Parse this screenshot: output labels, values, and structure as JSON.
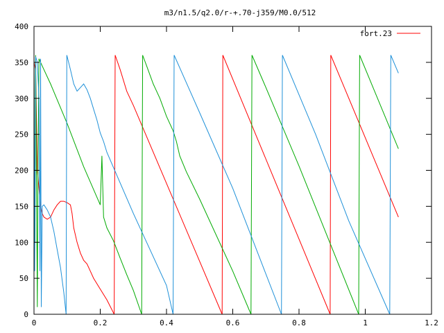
{
  "chart_data": {
    "type": "line",
    "title": "m3/n1.5/q2.0/r-+.70-j359/M0.0/512",
    "xlabel": "",
    "ylabel": "",
    "xlim": [
      0,
      1.2
    ],
    "ylim": [
      0,
      400
    ],
    "x_ticks": [
      0,
      0.2,
      0.4,
      0.6,
      0.8,
      1,
      1.2
    ],
    "x_tick_labels": [
      "0",
      "0.2",
      "0.4",
      "0.6",
      "0.8",
      "1",
      "1.2"
    ],
    "y_ticks": [
      0,
      50,
      100,
      150,
      200,
      250,
      300,
      350,
      400
    ],
    "y_tick_labels": [
      "0",
      "50",
      "100",
      "150",
      "200",
      "250",
      "300",
      "350",
      "400"
    ],
    "grid": false,
    "legend": {
      "position": "top-right",
      "entries": [
        "fort.23"
      ]
    },
    "series": [
      {
        "name": "fort.23",
        "color": "#ff0000",
        "points": [
          [
            0.0,
            350
          ],
          [
            0.005,
            340
          ],
          [
            0.01,
            200
          ],
          [
            0.02,
            150
          ],
          [
            0.025,
            140
          ],
          [
            0.03,
            135
          ],
          [
            0.04,
            132
          ],
          [
            0.05,
            135
          ],
          [
            0.06,
            145
          ],
          [
            0.07,
            152
          ],
          [
            0.08,
            157
          ],
          [
            0.09,
            157
          ],
          [
            0.1,
            155
          ],
          [
            0.11,
            152
          ],
          [
            0.115,
            140
          ],
          [
            0.12,
            120
          ],
          [
            0.13,
            100
          ],
          [
            0.14,
            85
          ],
          [
            0.15,
            75
          ],
          [
            0.16,
            70
          ],
          [
            0.17,
            60
          ],
          [
            0.18,
            50
          ],
          [
            0.2,
            35
          ],
          [
            0.22,
            20
          ],
          [
            0.242,
            0
          ],
          [
            0.245,
            360
          ],
          [
            0.26,
            340
          ],
          [
            0.28,
            310
          ],
          [
            0.29,
            300
          ],
          [
            0.3,
            290
          ],
          [
            0.568,
            0
          ],
          [
            0.57,
            360
          ],
          [
            0.894,
            0
          ],
          [
            0.896,
            360
          ],
          [
            1.1,
            135
          ]
        ]
      },
      {
        "name": "",
        "color": "#00aa00",
        "points": [
          [
            0.0,
            360
          ],
          [
            0.003,
            100
          ],
          [
            0.005,
            360
          ],
          [
            0.01,
            10
          ],
          [
            0.012,
            200
          ],
          [
            0.015,
            355
          ],
          [
            0.02,
            350
          ],
          [
            0.03,
            340
          ],
          [
            0.05,
            320
          ],
          [
            0.1,
            265
          ],
          [
            0.15,
            205
          ],
          [
            0.2,
            152
          ],
          [
            0.205,
            220
          ],
          [
            0.21,
            135
          ],
          [
            0.22,
            120
          ],
          [
            0.24,
            102
          ],
          [
            0.26,
            78
          ],
          [
            0.28,
            55
          ],
          [
            0.3,
            33
          ],
          [
            0.325,
            0
          ],
          [
            0.328,
            360
          ],
          [
            0.34,
            345
          ],
          [
            0.36,
            320
          ],
          [
            0.38,
            300
          ],
          [
            0.4,
            275
          ],
          [
            0.42,
            255
          ],
          [
            0.43,
            240
          ],
          [
            0.44,
            220
          ],
          [
            0.46,
            198
          ],
          [
            0.5,
            160
          ],
          [
            0.6,
            60
          ],
          [
            0.655,
            0
          ],
          [
            0.658,
            360
          ],
          [
            0.7,
            315
          ],
          [
            0.8,
            206
          ],
          [
            0.98,
            0
          ],
          [
            0.983,
            360
          ],
          [
            1.1,
            230
          ]
        ]
      },
      {
        "name": "",
        "color": "#1e90d8",
        "points": [
          [
            0.0,
            355
          ],
          [
            0.002,
            60
          ],
          [
            0.005,
            358
          ],
          [
            0.01,
            350
          ],
          [
            0.015,
            300
          ],
          [
            0.018,
            60
          ],
          [
            0.02,
            355
          ],
          [
            0.022,
            10
          ],
          [
            0.025,
            150
          ],
          [
            0.03,
            152
          ],
          [
            0.04,
            145
          ],
          [
            0.05,
            135
          ],
          [
            0.06,
            115
          ],
          [
            0.07,
            90
          ],
          [
            0.08,
            65
          ],
          [
            0.09,
            30
          ],
          [
            0.097,
            0
          ],
          [
            0.099,
            360
          ],
          [
            0.11,
            340
          ],
          [
            0.12,
            320
          ],
          [
            0.13,
            310
          ],
          [
            0.14,
            315
          ],
          [
            0.15,
            320
          ],
          [
            0.16,
            312
          ],
          [
            0.17,
            300
          ],
          [
            0.18,
            285
          ],
          [
            0.19,
            270
          ],
          [
            0.2,
            252
          ],
          [
            0.21,
            240
          ],
          [
            0.22,
            225
          ],
          [
            0.3,
            140
          ],
          [
            0.35,
            90
          ],
          [
            0.4,
            40
          ],
          [
            0.42,
            0
          ],
          [
            0.423,
            360
          ],
          [
            0.5,
            280
          ],
          [
            0.6,
            175
          ],
          [
            0.747,
            0
          ],
          [
            0.75,
            360
          ],
          [
            0.85,
            250
          ],
          [
            0.95,
            130
          ],
          [
            1.074,
            0
          ],
          [
            1.077,
            360
          ],
          [
            1.1,
            335
          ]
        ]
      }
    ]
  }
}
